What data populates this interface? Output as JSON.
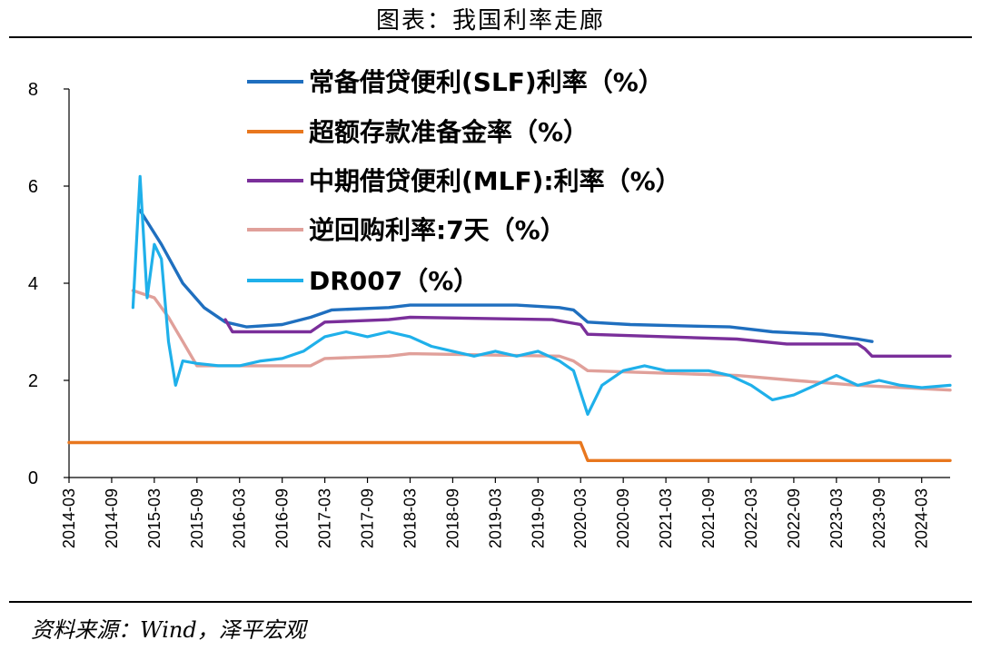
{
  "page": {
    "title": "图表：我国利率走廊",
    "source": "资料来源：Wind，泽平宏观"
  },
  "chart_data": {
    "type": "line",
    "title": "图表：我国利率走廊",
    "xlabel": "",
    "ylabel": "",
    "ylim": [
      0,
      8
    ],
    "yticks": [
      "0",
      "2",
      "4",
      "6",
      "8"
    ],
    "xlim": [
      "2014-03",
      "2024-07"
    ],
    "xticks": [
      "2014-03",
      "2014-09",
      "2015-03",
      "2015-09",
      "2016-03",
      "2016-09",
      "2017-03",
      "2017-09",
      "2018-03",
      "2018-09",
      "2019-03",
      "2019-09",
      "2020-03",
      "2020-09",
      "2021-03",
      "2021-09",
      "2022-03",
      "2022-09",
      "2023-03",
      "2023-09",
      "2024-03"
    ],
    "grid": false,
    "legend_position": "top-center",
    "series": [
      {
        "name": "常备借贷便利(SLF)利率（%）",
        "color": "#1f6fbf",
        "points": [
          [
            "2015-01",
            5.5
          ],
          [
            "2015-04",
            4.8
          ],
          [
            "2015-07",
            4.0
          ],
          [
            "2015-10",
            3.5
          ],
          [
            "2016-01",
            3.2
          ],
          [
            "2016-04",
            3.1
          ],
          [
            "2016-09",
            3.15
          ],
          [
            "2017-01",
            3.3
          ],
          [
            "2017-04",
            3.45
          ],
          [
            "2017-12",
            3.5
          ],
          [
            "2018-03",
            3.55
          ],
          [
            "2019-06",
            3.55
          ],
          [
            "2019-12",
            3.5
          ],
          [
            "2020-02",
            3.45
          ],
          [
            "2020-04",
            3.2
          ],
          [
            "2020-10",
            3.15
          ],
          [
            "2021-06",
            3.12
          ],
          [
            "2021-12",
            3.1
          ],
          [
            "2022-06",
            3.0
          ],
          [
            "2023-01",
            2.95
          ],
          [
            "2023-06",
            2.85
          ],
          [
            "2023-08",
            2.8
          ]
        ]
      },
      {
        "name": "超额存款准备金率（%）",
        "color": "#e8771e",
        "points": [
          [
            "2014-03",
            0.72
          ],
          [
            "2020-03",
            0.72
          ],
          [
            "2020-04",
            0.35
          ],
          [
            "2024-07",
            0.35
          ]
        ]
      },
      {
        "name": "中期借贷便利(MLF):利率（%）",
        "color": "#7a2f9a",
        "points": [
          [
            "2016-01",
            3.25
          ],
          [
            "2016-02",
            3.0
          ],
          [
            "2017-01",
            3.0
          ],
          [
            "2017-02",
            3.1
          ],
          [
            "2017-03",
            3.2
          ],
          [
            "2017-12",
            3.25
          ],
          [
            "2018-03",
            3.3
          ],
          [
            "2019-11",
            3.25
          ],
          [
            "2020-03",
            3.15
          ],
          [
            "2020-04",
            2.95
          ],
          [
            "2022-01",
            2.85
          ],
          [
            "2022-08",
            2.75
          ],
          [
            "2023-06",
            2.75
          ],
          [
            "2023-07",
            2.65
          ],
          [
            "2023-08",
            2.5
          ],
          [
            "2024-07",
            2.5
          ]
        ]
      },
      {
        "name": "逆回购利率:7天（%）",
        "color": "#e0a09a",
        "points": [
          [
            "2014-12",
            3.85
          ],
          [
            "2015-03",
            3.7
          ],
          [
            "2015-05",
            3.3
          ],
          [
            "2015-07",
            2.8
          ],
          [
            "2015-09",
            2.3
          ],
          [
            "2017-01",
            2.3
          ],
          [
            "2017-03",
            2.45
          ],
          [
            "2017-12",
            2.5
          ],
          [
            "2018-03",
            2.55
          ],
          [
            "2019-12",
            2.5
          ],
          [
            "2020-02",
            2.4
          ],
          [
            "2020-04",
            2.2
          ],
          [
            "2022-01",
            2.1
          ],
          [
            "2022-09",
            2.0
          ],
          [
            "2023-06",
            1.9
          ],
          [
            "2024-07",
            1.8
          ]
        ]
      },
      {
        "name": "DR007（%）",
        "color": "#1fb0ea",
        "points": [
          [
            "2014-12",
            3.5
          ],
          [
            "2015-01",
            6.2
          ],
          [
            "2015-02",
            3.7
          ],
          [
            "2015-03",
            4.8
          ],
          [
            "2015-04",
            4.5
          ],
          [
            "2015-05",
            2.8
          ],
          [
            "2015-06",
            1.9
          ],
          [
            "2015-07",
            2.4
          ],
          [
            "2015-09",
            2.35
          ],
          [
            "2015-12",
            2.3
          ],
          [
            "2016-03",
            2.3
          ],
          [
            "2016-06",
            2.4
          ],
          [
            "2016-09",
            2.45
          ],
          [
            "2016-12",
            2.6
          ],
          [
            "2017-03",
            2.9
          ],
          [
            "2017-06",
            3.0
          ],
          [
            "2017-09",
            2.9
          ],
          [
            "2017-12",
            3.0
          ],
          [
            "2018-03",
            2.9
          ],
          [
            "2018-06",
            2.7
          ],
          [
            "2018-09",
            2.6
          ],
          [
            "2018-12",
            2.5
          ],
          [
            "2019-03",
            2.6
          ],
          [
            "2019-06",
            2.5
          ],
          [
            "2019-09",
            2.6
          ],
          [
            "2019-12",
            2.4
          ],
          [
            "2020-02",
            2.2
          ],
          [
            "2020-04",
            1.3
          ],
          [
            "2020-06",
            1.9
          ],
          [
            "2020-09",
            2.2
          ],
          [
            "2020-12",
            2.3
          ],
          [
            "2021-03",
            2.2
          ],
          [
            "2021-06",
            2.2
          ],
          [
            "2021-09",
            2.2
          ],
          [
            "2021-12",
            2.1
          ],
          [
            "2022-03",
            1.9
          ],
          [
            "2022-06",
            1.6
          ],
          [
            "2022-09",
            1.7
          ],
          [
            "2022-12",
            1.9
          ],
          [
            "2023-03",
            2.1
          ],
          [
            "2023-06",
            1.9
          ],
          [
            "2023-09",
            2.0
          ],
          [
            "2023-12",
            1.9
          ],
          [
            "2024-03",
            1.85
          ],
          [
            "2024-07",
            1.9
          ]
        ]
      }
    ]
  }
}
